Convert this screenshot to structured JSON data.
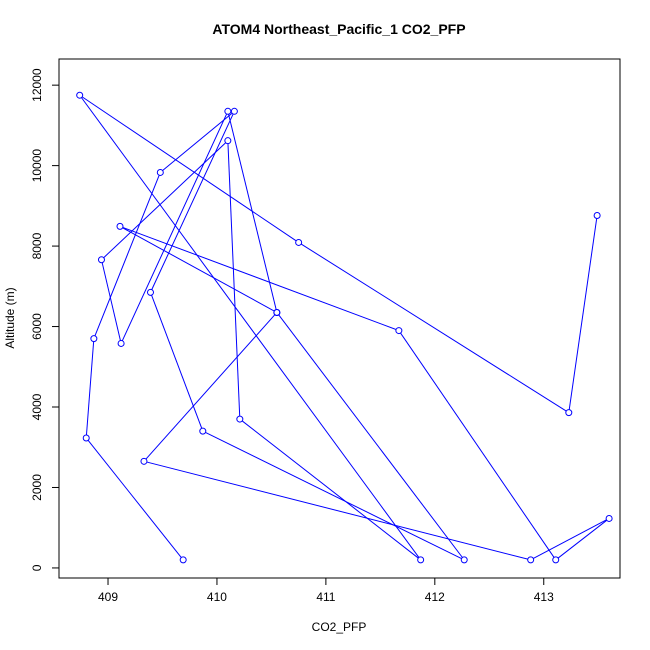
{
  "chart_data": {
    "type": "line",
    "title": "ATOM4 Northeast_Pacific_1 CO2_PFP",
    "xlabel": "CO2_PFP",
    "ylabel": "Altitude (m)",
    "xlim": [
      408.55,
      413.7
    ],
    "ylim": [
      -250,
      12650
    ],
    "xticks": [
      409,
      410,
      411,
      412,
      413
    ],
    "yticks": [
      0,
      2000,
      4000,
      6000,
      8000,
      10000,
      12000
    ],
    "series_color": "#0000ff",
    "marker": "open-circle",
    "grid": false,
    "series": [
      {
        "x": [
          409.69,
          408.8,
          408.87,
          409.48,
          410.16,
          409.39,
          409.87,
          412.27,
          410.55,
          409.11,
          411.67,
          413.11,
          413.6,
          412.88,
          409.33,
          410.55,
          410.1,
          409.12,
          408.94,
          410.1,
          410.21,
          411.87,
          408.74,
          410.75,
          413.23,
          413.49
        ]
      },
      {
        "y": [
          200,
          3230,
          5700,
          9830,
          11350,
          6850,
          3400,
          200,
          6350,
          8490,
          5900,
          200,
          1230,
          200,
          2650,
          6350,
          11350,
          5580,
          7660,
          10620,
          3700,
          200,
          11750,
          8090,
          3860,
          8760
        ]
      }
    ]
  }
}
